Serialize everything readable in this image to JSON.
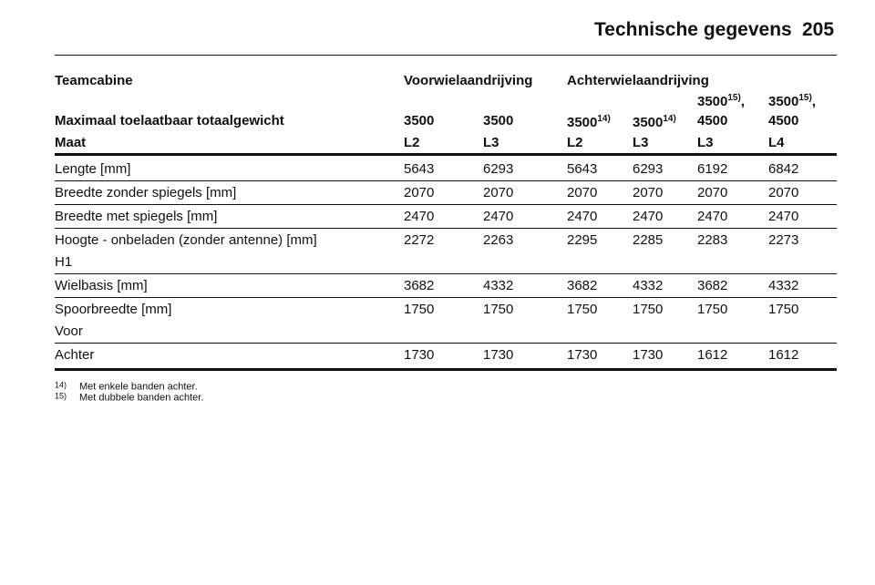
{
  "header": {
    "title": "Technische gegevens",
    "page": "205"
  },
  "table": {
    "group_row": {
      "label": "Teamcabine",
      "groups": [
        "Voorwielaandrijving",
        "Achterwielaandrijving"
      ]
    },
    "weight_row": {
      "label": "Maximaal toelaatbaar totaalgewicht",
      "cells": [
        {
          "text": "3500"
        },
        {
          "text": "3500"
        },
        {
          "text": "3500",
          "sup": "14)"
        },
        {
          "text": "3500",
          "sup": "14)"
        },
        {
          "text": "3500",
          "sup": "15)",
          "suffix": ",",
          "text2": "4500"
        },
        {
          "text": "3500",
          "sup": "15)",
          "suffix": ",",
          "text2": "4500"
        }
      ]
    },
    "size_row": {
      "label": "Maat",
      "cells": [
        "L2",
        "L3",
        "L2",
        "L3",
        "L3",
        "L4"
      ]
    },
    "rows": [
      {
        "label": "Lengte [mm]",
        "values": [
          "5643",
          "6293",
          "5643",
          "6293",
          "6192",
          "6842"
        ]
      },
      {
        "label": "Breedte zonder spiegels [mm]",
        "values": [
          "2070",
          "2070",
          "2070",
          "2070",
          "2070",
          "2070"
        ]
      },
      {
        "label": "Breedte met spiegels [mm]",
        "values": [
          "2470",
          "2470",
          "2470",
          "2470",
          "2470",
          "2470"
        ]
      },
      {
        "label": "Hoogte - onbeladen (zonder antenne) [mm]",
        "sublabel": "H1",
        "values": [
          "2272",
          "2263",
          "2295",
          "2285",
          "2283",
          "2273"
        ]
      },
      {
        "label": "Wielbasis [mm]",
        "values": [
          "3682",
          "4332",
          "3682",
          "4332",
          "3682",
          "4332"
        ]
      },
      {
        "label": "Spoorbreedte [mm]",
        "sublabel": "Voor",
        "values": [
          "1750",
          "1750",
          "1750",
          "1750",
          "1750",
          "1750"
        ]
      },
      {
        "label": "Achter",
        "values": [
          "1730",
          "1730",
          "1730",
          "1730",
          "1612",
          "1612"
        ]
      }
    ]
  },
  "footnotes": [
    {
      "mark": "14)",
      "text": "Met enkele banden achter."
    },
    {
      "mark": "15)",
      "text": "Met dubbele banden achter."
    }
  ]
}
